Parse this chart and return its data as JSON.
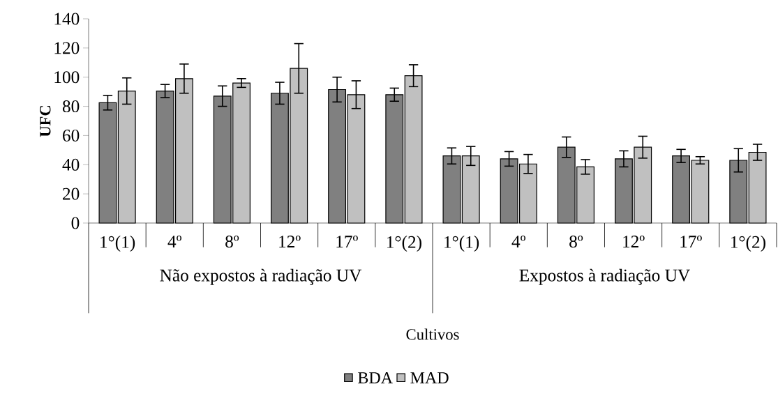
{
  "chart_data": {
    "type": "bar",
    "xlabel": "Cultivos",
    "ylabel": "UFC",
    "categories": [
      "1°(1)",
      "4º",
      "8º",
      "12º",
      "17º",
      "1°(2)",
      "1°(1)",
      "4º",
      "8º",
      "12º",
      "17º",
      "1°(2)"
    ],
    "annotations": [
      "Não expostos à radiação UV",
      "Expostos à radiação UV"
    ],
    "series": [
      {
        "name": "BDA",
        "color": "#808080",
        "values": [
          82.5,
          90.5,
          87,
          89,
          91.5,
          88,
          46,
          44,
          52,
          44,
          46,
          43
        ],
        "errors": [
          5,
          4.5,
          7,
          7.5,
          8.5,
          4.5,
          5.5,
          5,
          7,
          5.5,
          4.5,
          8
        ]
      },
      {
        "name": "MAD",
        "color": "#c0c0c0",
        "values": [
          90.5,
          99,
          96,
          106,
          88,
          101,
          46,
          40.5,
          38.5,
          52,
          43,
          48.5
        ],
        "errors": [
          9,
          10,
          3,
          17,
          9.5,
          7.5,
          6.5,
          6.5,
          5,
          7.5,
          2.5,
          5.5
        ]
      }
    ],
    "ylim": [
      0,
      140
    ],
    "yticks": [
      0,
      20,
      40,
      60,
      80,
      100,
      120,
      140
    ],
    "grid": false,
    "legend": "bottom"
  }
}
